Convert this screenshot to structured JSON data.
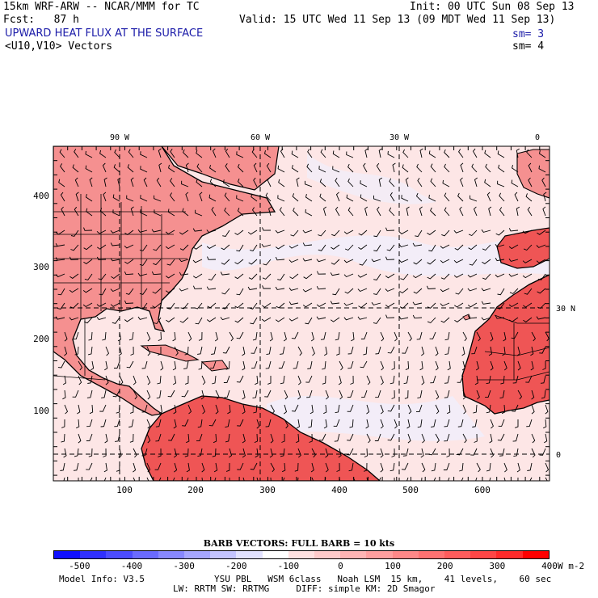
{
  "header": {
    "model_title": "15km WRF-ARW -- NCAR/MMM for TC",
    "init": "Init: 00 UTC Sun 08 Sep 13",
    "fcst": "Fcst:   87 h",
    "valid": "Valid: 15 UTC Wed 11 Sep 13 (09 MDT Wed 11 Sep 13)",
    "field_name": "UPWARD HEAT FLUX AT THE SURFACE",
    "field_sm": "sm= 3",
    "vector_name": "<U10,V10> Vectors",
    "vector_sm": "sm= 4"
  },
  "map": {
    "top_lon_labels": [
      "90 W",
      "60 W",
      "30 W",
      "0"
    ],
    "left_ticks": [
      "400",
      "300",
      "200",
      "100"
    ],
    "bottom_ticks": [
      "100",
      "200",
      "300",
      "400",
      "500",
      "600"
    ],
    "right_lat_labels": [
      "30 N",
      "0"
    ],
    "colors": {
      "land_strong": "#ef5555",
      "land": "#f59090",
      "ocean": "#fde6e6",
      "ocean_cool": "#eef0ff",
      "coast": "#000000"
    }
  },
  "legend": {
    "barb_title": "BARB VECTORS:  FULL BARB = 10 kts",
    "colors": [
      "#1010ff",
      "#3030ff",
      "#4c4cff",
      "#6a6aff",
      "#8888ff",
      "#a6a6ff",
      "#c4c4ff",
      "#e2e2ff",
      "#ffffff",
      "#ffe0e0",
      "#ffcaca",
      "#ffb4b4",
      "#ff9e9e",
      "#ff8888",
      "#ff7272",
      "#ff5c5c",
      "#ff4646",
      "#ff2a2a",
      "#ff0000"
    ],
    "labels": [
      "-500",
      "-400",
      "-300",
      "-200",
      "-100",
      "0",
      "100",
      "200",
      "300",
      "400"
    ],
    "unit": "W m-2"
  },
  "footer": {
    "model_info": "Model Info: V3.5",
    "physics1": "YSU PBL   WSM 6class   Noah LSM  15 km,    41 levels,    60 sec",
    "physics2": "LW: RRTM SW: RRTMG     DIFF: simple KM: 2D Smagor"
  }
}
